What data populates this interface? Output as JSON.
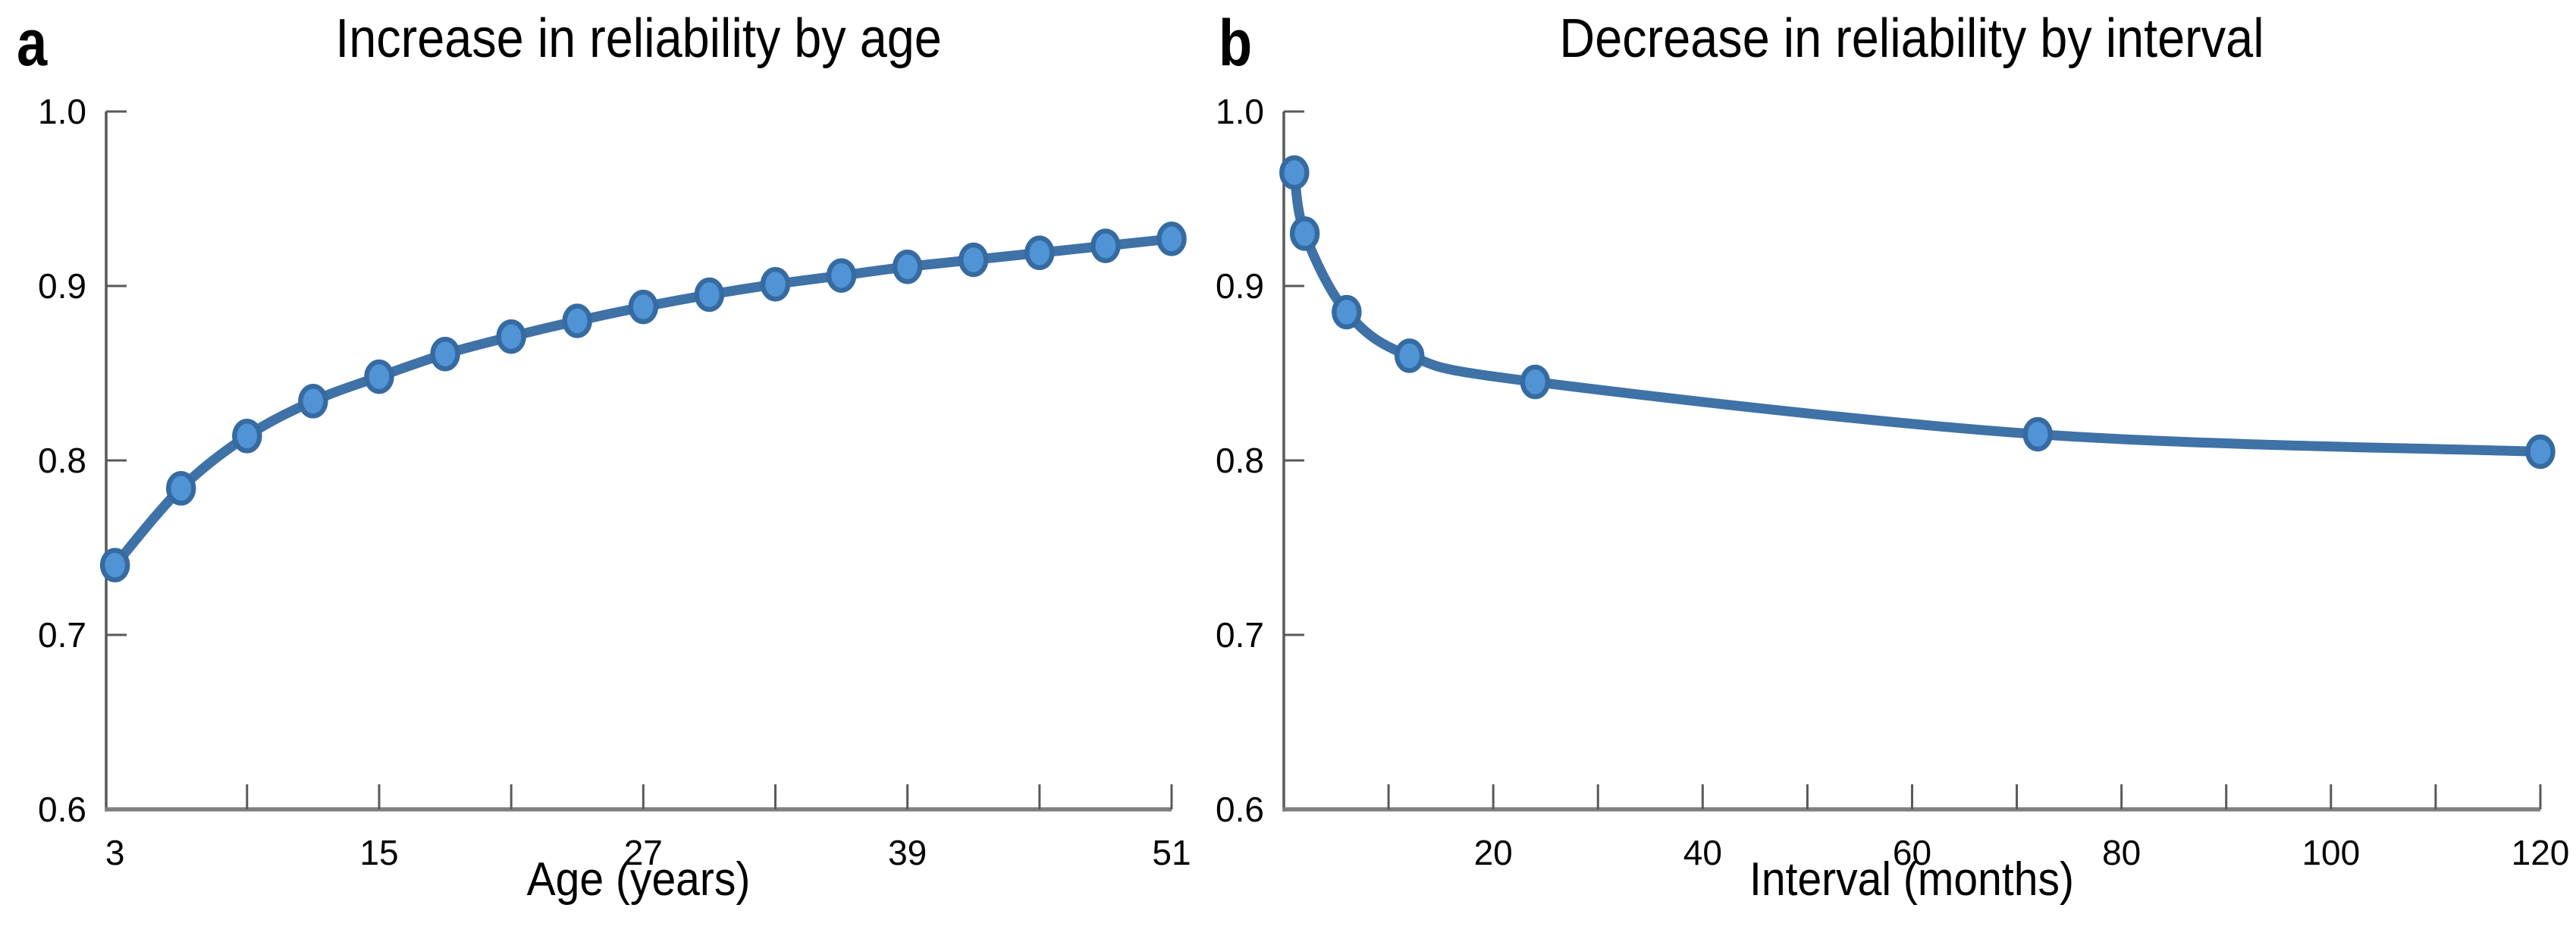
{
  "figure": {
    "background": "#ffffff",
    "panels": [
      {
        "panel_label": "a",
        "title": "Increase in reliability by age",
        "xlabel": "Age (years)"
      },
      {
        "panel_label": "b",
        "title": "Decrease in reliability by interval",
        "xlabel": "Interval (months)"
      }
    ],
    "colors": {
      "line": "#3F72A6",
      "marker_fill": "#5094D6",
      "marker_stroke": "#366BA1",
      "y_axis": "#595959",
      "x_axis": "#7F7F7F",
      "tick": "#595959",
      "text": "#000000"
    }
  },
  "chart_data": [
    {
      "type": "line",
      "panel": "a",
      "title": "Increase in reliability by age",
      "xlabel": "Age (years)",
      "ylabel": "",
      "x": [
        3,
        6,
        9,
        12,
        15,
        18,
        21,
        24,
        27,
        30,
        33,
        36,
        39,
        42,
        45,
        48,
        51
      ],
      "y": [
        0.74,
        0.784,
        0.814,
        0.834,
        0.848,
        0.861,
        0.871,
        0.88,
        0.888,
        0.895,
        0.901,
        0.906,
        0.911,
        0.915,
        0.919,
        0.923,
        0.927
      ],
      "xlim": [
        2.6,
        51
      ],
      "ylim": [
        0.6,
        1.0
      ],
      "grid": false,
      "legend": null,
      "xticks": [
        {
          "v": 3,
          "label": "3",
          "mark": false
        },
        {
          "v": 9,
          "mark": true
        },
        {
          "v": 15,
          "label": "15",
          "mark": true
        },
        {
          "v": 21,
          "mark": true
        },
        {
          "v": 27,
          "label": "27",
          "mark": true
        },
        {
          "v": 33,
          "mark": true
        },
        {
          "v": 39,
          "label": "39",
          "mark": true
        },
        {
          "v": 45,
          "mark": true
        },
        {
          "v": 51,
          "label": "51",
          "mark": true
        }
      ],
      "yticks": [
        {
          "v": 1.0,
          "label": "1.0",
          "mark": true
        },
        {
          "v": 0.9,
          "label": "0.9",
          "mark": true
        },
        {
          "v": 0.8,
          "label": "0.8",
          "mark": true
        },
        {
          "v": 0.7,
          "label": "0.7",
          "mark": true
        },
        {
          "v": 0.6,
          "label": "0.6",
          "mark": false
        }
      ]
    },
    {
      "type": "line",
      "panel": "b",
      "title": "Decrease in reliability by interval",
      "xlabel": "Interval (months)",
      "ylabel": "",
      "x": [
        1,
        2,
        6,
        12,
        24,
        72,
        120
      ],
      "y": [
        0.965,
        0.93,
        0.885,
        0.86,
        0.845,
        0.815,
        0.805
      ],
      "xlim": [
        0,
        120
      ],
      "ylim": [
        0.6,
        1.0
      ],
      "grid": false,
      "legend": null,
      "xticks": [
        {
          "v": 10,
          "mark": true
        },
        {
          "v": 20,
          "label": "20",
          "mark": true
        },
        {
          "v": 30,
          "mark": true
        },
        {
          "v": 40,
          "label": "40",
          "mark": true
        },
        {
          "v": 50,
          "mark": true
        },
        {
          "v": 60,
          "label": "60",
          "mark": true
        },
        {
          "v": 70,
          "mark": true
        },
        {
          "v": 80,
          "label": "80",
          "mark": true
        },
        {
          "v": 90,
          "mark": true
        },
        {
          "v": 100,
          "label": "100",
          "mark": true
        },
        {
          "v": 110,
          "mark": true
        },
        {
          "v": 120,
          "label": "120",
          "mark": true
        }
      ],
      "yticks": [
        {
          "v": 1.0,
          "label": "1.0",
          "mark": true
        },
        {
          "v": 0.9,
          "label": "0.9",
          "mark": true
        },
        {
          "v": 0.8,
          "label": "0.8",
          "mark": true
        },
        {
          "v": 0.7,
          "label": "0.7",
          "mark": true
        },
        {
          "v": 0.6,
          "label": "0.6",
          "mark": false
        }
      ]
    }
  ]
}
